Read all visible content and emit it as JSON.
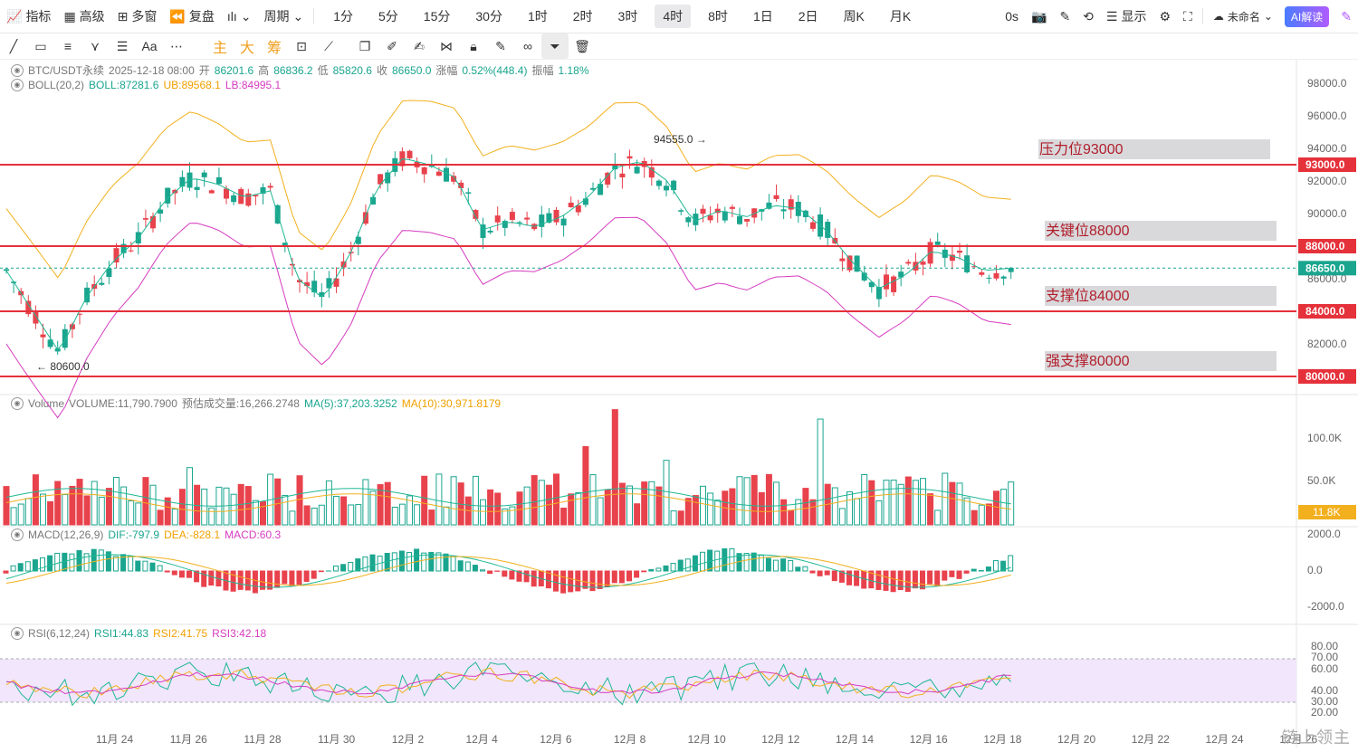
{
  "topbar": {
    "indicators": "指标",
    "advanced": "高级",
    "multi_window": "多窗",
    "replay": "复盘",
    "period_menu": "周期",
    "periods": [
      "1分",
      "5分",
      "15分",
      "30分",
      "1时",
      "2时",
      "3时",
      "4时",
      "8时",
      "1日",
      "2日",
      "周K",
      "月K"
    ],
    "active_period": "4时",
    "delay": "0s",
    "display": "显示",
    "layout_name": "未命名",
    "ai_button": "AI解读"
  },
  "drawing_tools": {
    "main_chars": [
      "主",
      "大",
      "筹"
    ],
    "font_label": "Aa"
  },
  "main_legend": {
    "symbol": "BTC/USDT永续",
    "time": "2025-12-18 08:00",
    "open_label": "开",
    "open": "86201.6",
    "high_label": "高",
    "high": "86836.2",
    "low_label": "低",
    "low": "85820.6",
    "close_label": "收",
    "close": "86650.0",
    "change_label": "涨幅",
    "change": "0.52%(448.4)",
    "amp_label": "振幅",
    "amp": "1.18%"
  },
  "boll_legend": {
    "name": "BOLL(20,2)",
    "mid": "BOLL:87281.6",
    "ub": "UB:89568.1",
    "lb": "LB:84995.1"
  },
  "volume_legend": {
    "name": "Volume",
    "volume": "VOLUME:11,790.7900",
    "est": "预估成交量:16,266.2748",
    "ma5": "MA(5):37,203.3252",
    "ma10": "MA(10):30,971.8179"
  },
  "macd_legend": {
    "name": "MACD(12,26,9)",
    "dif": "DIF:-797.9",
    "dea": "DEA:-828.1",
    "macd": "MACD:60.3"
  },
  "rsi_legend": {
    "name": "RSI(6,12,24)",
    "rsi1": "RSI1:44.83",
    "rsi2": "RSI2:41.75",
    "rsi3": "RSI3:42.18"
  },
  "price_axis": [
    "98000.0",
    "96000.0",
    "94000.0",
    "92000.0",
    "90000.0",
    "88000.0",
    "86000.0",
    "84000.0",
    "82000.0",
    "80000.0"
  ],
  "level_tags": [
    "93000.0",
    "88000.0",
    "86650.0",
    "84000.0",
    "80000.0"
  ],
  "annotations": [
    {
      "label": "压力位93000",
      "price": 93000
    },
    {
      "label": "关键位88000",
      "price": 88000
    },
    {
      "label": "支撑位84000",
      "price": 84000
    },
    {
      "label": "强支撑80000",
      "price": 80000
    }
  ],
  "high_marker": "94555.0",
  "low_marker": "80600.0",
  "volume_axis": [
    "100.0K",
    "50.0K"
  ],
  "volume_tag": "11.8K",
  "macd_axis": [
    "2000.0",
    "0.0",
    "-2000.0"
  ],
  "rsi_axis": [
    "80.00",
    "70.00",
    "60.00",
    "40.00",
    "30.00",
    "20.00"
  ],
  "x_labels": [
    "11月 24",
    "11月 26",
    "11月 28",
    "11月 30",
    "12月 2",
    "12月 4",
    "12月 6",
    "12月 8",
    "12月 10",
    "12月 12",
    "12月 14",
    "12月 16",
    "12月 18",
    "12月 20",
    "12月 22",
    "12月 24",
    "12月 26"
  ],
  "watermark": "链上领主",
  "colors": {
    "up": "#1aa58f",
    "down": "#e8424c",
    "line": "#e5313a",
    "mid": "#1fb894",
    "ub": "#f2b01e",
    "lb": "#d63cc0"
  }
}
